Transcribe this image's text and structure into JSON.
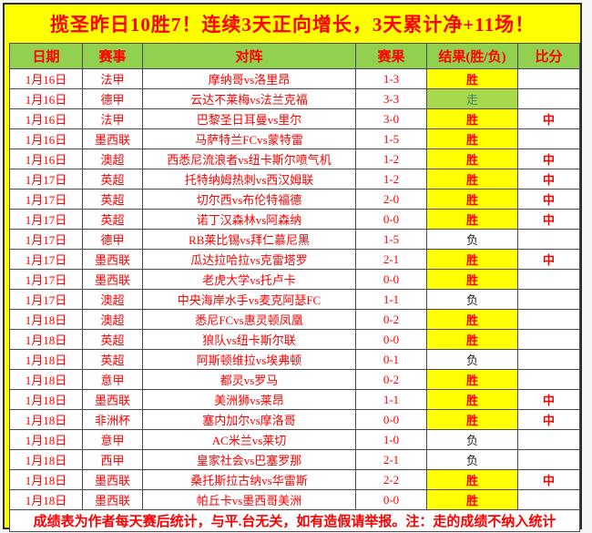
{
  "banner": {
    "text": "揽圣昨日10胜7！连续3天正向增长，3天累计净+11场！"
  },
  "table": {
    "headers": [
      "日期",
      "赛事",
      "对阵",
      "赛果",
      "结果(胜/负)",
      "比分"
    ],
    "rows": [
      {
        "date": "1月16日",
        "league": "法甲",
        "match": "摩纳哥vs洛里昂",
        "score": "1-3",
        "result": "胜",
        "mark": ""
      },
      {
        "date": "1月16日",
        "league": "德甲",
        "match": "云达不莱梅vs法兰克福",
        "score": "3-3",
        "result": "走",
        "mark": ""
      },
      {
        "date": "1月16日",
        "league": "法甲",
        "match": "巴黎圣日耳曼vs里尔",
        "score": "3-0",
        "result": "胜",
        "mark": "中"
      },
      {
        "date": "1月16日",
        "league": "墨西联",
        "match": "马萨特兰FCvs蒙特雷",
        "score": "1-5",
        "result": "胜",
        "mark": ""
      },
      {
        "date": "1月16日",
        "league": "澳超",
        "match": "西悉尼流浪者vs纽卡斯尔喷气机",
        "score": "1-2",
        "result": "胜",
        "mark": "中"
      },
      {
        "date": "1月17日",
        "league": "英超",
        "match": "托特纳姆热刺vs西汉姆联",
        "score": "1-2",
        "result": "胜",
        "mark": "中"
      },
      {
        "date": "1月17日",
        "league": "英超",
        "match": "切尔西vs布伦特福德",
        "score": "2-0",
        "result": "胜",
        "mark": "中"
      },
      {
        "date": "1月17日",
        "league": "英超",
        "match": "诺丁汉森林vs阿森纳",
        "score": "0-0",
        "result": "胜",
        "mark": "中"
      },
      {
        "date": "1月17日",
        "league": "德甲",
        "match": "RB莱比锡vs拜仁慕尼黑",
        "score": "1-5",
        "result": "负",
        "mark": ""
      },
      {
        "date": "1月17日",
        "league": "墨西联",
        "match": "瓜达拉哈拉vs克雷塔罗",
        "score": "2-1",
        "result": "胜",
        "mark": "中"
      },
      {
        "date": "1月17日",
        "league": "墨西联",
        "match": "老虎大学vs托卢卡",
        "score": "0-0",
        "result": "胜",
        "mark": ""
      },
      {
        "date": "1月17日",
        "league": "澳超",
        "match": "中央海岸水手vs麦克阿瑟FC",
        "score": "1-1",
        "result": "负",
        "mark": ""
      },
      {
        "date": "1月18日",
        "league": "澳超",
        "match": "悉尼FCvs惠灵顿凤凰",
        "score": "0-2",
        "result": "胜",
        "mark": ""
      },
      {
        "date": "1月18日",
        "league": "英超",
        "match": "狼队vs纽卡斯尔联",
        "score": "0-0",
        "result": "胜",
        "mark": ""
      },
      {
        "date": "1月18日",
        "league": "英超",
        "match": "阿斯顿维拉vs埃弗顿",
        "score": "0-1",
        "result": "负",
        "mark": ""
      },
      {
        "date": "1月18日",
        "league": "意甲",
        "match": "都灵vs罗马",
        "score": "0-2",
        "result": "胜",
        "mark": ""
      },
      {
        "date": "1月18日",
        "league": "墨西联",
        "match": "美洲狮vs莱昂",
        "score": "1-1",
        "result": "胜",
        "mark": "中"
      },
      {
        "date": "1月18日",
        "league": "非洲杯",
        "match": "塞内加尔vs摩洛哥",
        "score": "0-0",
        "result": "胜",
        "mark": "中"
      },
      {
        "date": "1月18日",
        "league": "意甲",
        "match": "AC米兰vs莱切",
        "score": "1-0",
        "result": "负",
        "mark": ""
      },
      {
        "date": "1月18日",
        "league": "西甲",
        "match": "皇家社会vs巴塞罗那",
        "score": "2-1",
        "result": "负",
        "mark": ""
      },
      {
        "date": "1月18日",
        "league": "墨西联",
        "match": "桑托斯拉古纳vs华雷斯",
        "score": "2-2",
        "result": "胜",
        "mark": "中"
      },
      {
        "date": "1月18日",
        "league": "墨西联",
        "match": "帕丘卡vs墨西哥美洲",
        "score": "0-0",
        "result": "胜",
        "mark": ""
      }
    ],
    "footer_note": "成绩表为作者每天赛后统计，与平.台无关，如有造假请举报。注：走的成绩不纳入统计"
  },
  "colors": {
    "page_bg": "#ffff00",
    "banner_text": "#ff0000",
    "header_bg": "#92d050",
    "header_text": "#ff0000",
    "row_text": "#ff0000",
    "win_bg": "#ffff00",
    "win_text": "#ff0000",
    "loss_text": "#222222",
    "draw_bg": "#a8d94c",
    "draw_text": "#40806a",
    "mark_text": "#ff0000",
    "footer_text": "#ff0000"
  }
}
